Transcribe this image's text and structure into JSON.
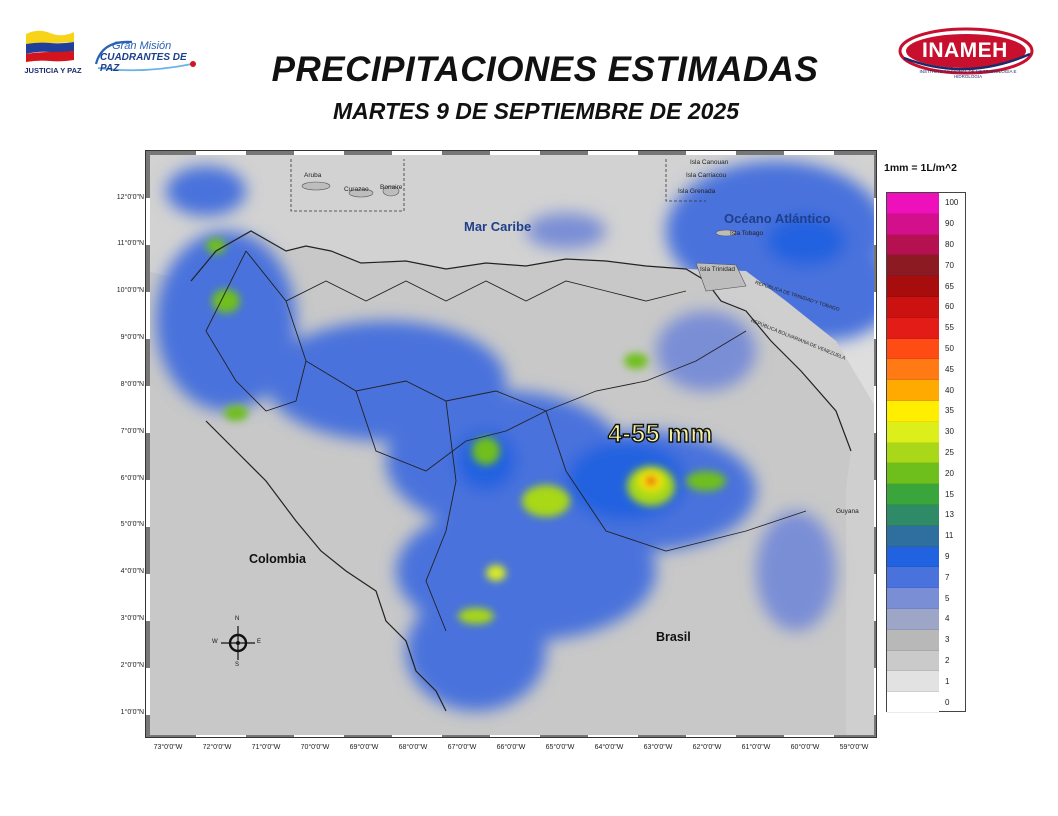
{
  "header": {
    "title": "PRECIPITACIONES ESTIMADAS",
    "subtitle": "MARTES 9 DE SEPTIEMBRE DE 2025"
  },
  "logos": {
    "left_org": "JUSTICIA Y PAZ",
    "left_program_line1": "Gran Misión",
    "left_program_line2": "CUADRANTES DE PAZ",
    "right_org": "INAMEH",
    "right_org_full": "INSTITUTO NACIONAL DE METEOROLOGÍA E HIDROLOGÍA"
  },
  "map": {
    "latitude_labels": [
      "12°0'0\"N",
      "11°0'0\"N",
      "10°0'0\"N",
      "9°0'0\"N",
      "8°0'0\"N",
      "7°0'0\"N",
      "6°0'0\"N",
      "5°0'0\"N",
      "4°0'0\"N",
      "3°0'0\"N",
      "2°0'0\"N",
      "1°0'0\"N"
    ],
    "longitude_labels": [
      "73°0'0\"W",
      "72°0'0\"W",
      "71°0'0\"W",
      "70°0'0\"W",
      "69°0'0\"W",
      "68°0'0\"W",
      "67°0'0\"W",
      "66°0'0\"W",
      "65°0'0\"W",
      "64°0'0\"W",
      "63°0'0\"W",
      "62°0'0\"W",
      "61°0'0\"W",
      "60°0'0\"W",
      "59°0'0\"W"
    ],
    "places": {
      "aruba": "Aruba",
      "curazao": "Curazao",
      "bonaire": "Bonaire",
      "canouan": "Isla Canouan",
      "carriacou": "Isla Carriacou",
      "grenada": "Isla Grenada",
      "tobago": "Isla Tobago",
      "trinidad": "Isla Trinidad",
      "guyana": "Guyana",
      "rep_trinidad": "REPÚBLICA DE TRINIDAD Y TOBAGO",
      "rep_venezuela": "REPÚBLICA BOLIVARIANA DE VENEZUELA"
    },
    "regions": {
      "caribbean": "Mar Caribe",
      "atlantic": "Océano Atlántico",
      "colombia": "Colombia",
      "brasil": "Brasil"
    },
    "callout": "4-55 mm",
    "compass": {
      "n": "N",
      "s": "S",
      "e": "E",
      "w": "W"
    }
  },
  "legend": {
    "unit": "1mm = 1L/m^2",
    "items": [
      {
        "label": "100",
        "color": "#ee11bb"
      },
      {
        "label": "90",
        "color": "#d40f8c"
      },
      {
        "label": "80",
        "color": "#b5104f"
      },
      {
        "label": "70",
        "color": "#8c1a22"
      },
      {
        "label": "65",
        "color": "#a80d0d"
      },
      {
        "label": "60",
        "color": "#cc1111"
      },
      {
        "label": "55",
        "color": "#e31c17"
      },
      {
        "label": "50",
        "color": "#ff4b14"
      },
      {
        "label": "45",
        "color": "#ff7a14"
      },
      {
        "label": "40",
        "color": "#ffaa00"
      },
      {
        "label": "35",
        "color": "#ffee00"
      },
      {
        "label": "30",
        "color": "#dcef1a"
      },
      {
        "label": "25",
        "color": "#a8d818"
      },
      {
        "label": "20",
        "color": "#6fbf1c"
      },
      {
        "label": "15",
        "color": "#3aa53a"
      },
      {
        "label": "13",
        "color": "#2f8a68"
      },
      {
        "label": "11",
        "color": "#2f6fa0"
      },
      {
        "label": "9",
        "color": "#2062e0"
      },
      {
        "label": "7",
        "color": "#4a72dc"
      },
      {
        "label": "5",
        "color": "#7a8ed6"
      },
      {
        "label": "4",
        "color": "#9ea6c8"
      },
      {
        "label": "3",
        "color": "#b8b8b8"
      },
      {
        "label": "2",
        "color": "#cacaca"
      },
      {
        "label": "1",
        "color": "#e2e2e2"
      },
      {
        "label": "0",
        "color": "#ffffff"
      }
    ]
  }
}
